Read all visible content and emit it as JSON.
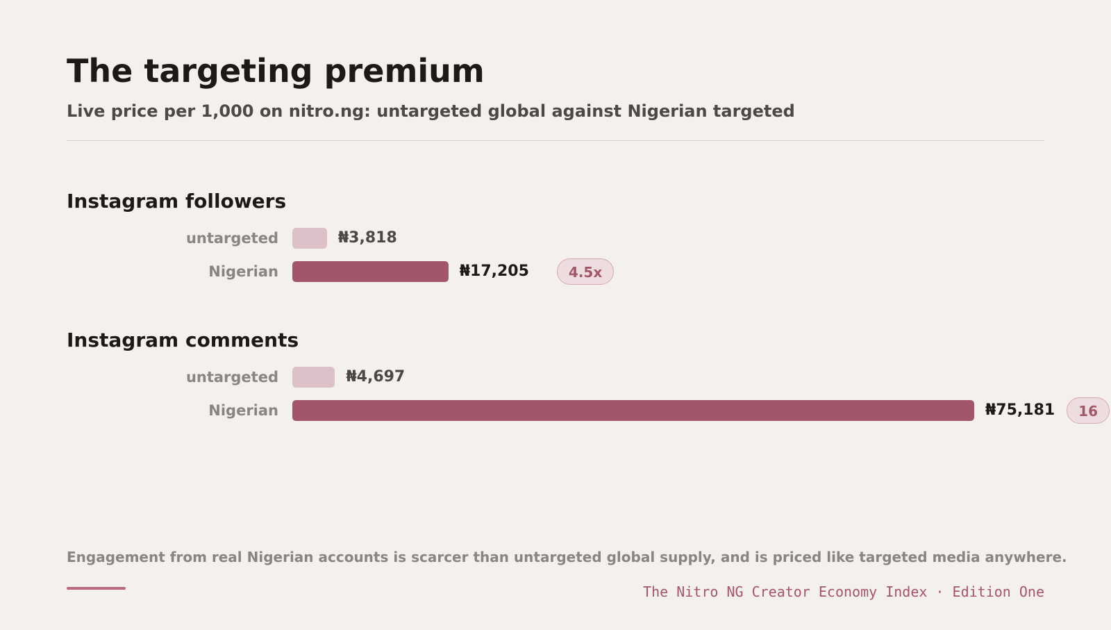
{
  "chart_data": {
    "type": "bar",
    "orientation": "horizontal",
    "title": "The targeting premium",
    "subtitle": "Live price per 1,000 on nitro.ng: untargeted global against Nigerian targeted",
    "currency_symbol": "₦",
    "groups": [
      {
        "name": "Instagram followers",
        "rows": [
          {
            "label": "untargeted",
            "value": 3818,
            "display": "₦3,818"
          },
          {
            "label": "Nigerian",
            "value": 17205,
            "display": "₦17,205"
          }
        ],
        "ratio": "4.5x"
      },
      {
        "name": "Instagram comments",
        "rows": [
          {
            "label": "untargeted",
            "value": 4697,
            "display": "₦4,697"
          },
          {
            "label": "Nigerian",
            "value": 75181,
            "display": "₦75,181"
          }
        ],
        "ratio": "16"
      }
    ],
    "scale_max": 75181,
    "colors": {
      "untargeted": "#dcc1c8",
      "targeted": "#a35669",
      "ratio_text": "#a35669",
      "ratio_bg": "#eddde0"
    }
  },
  "footnote": "Engagement from real Nigerian accounts is scarcer than untargeted global supply, and is priced like targeted media anywhere.",
  "credit": "The Nitro NG Creator Economy Index · Edition One"
}
